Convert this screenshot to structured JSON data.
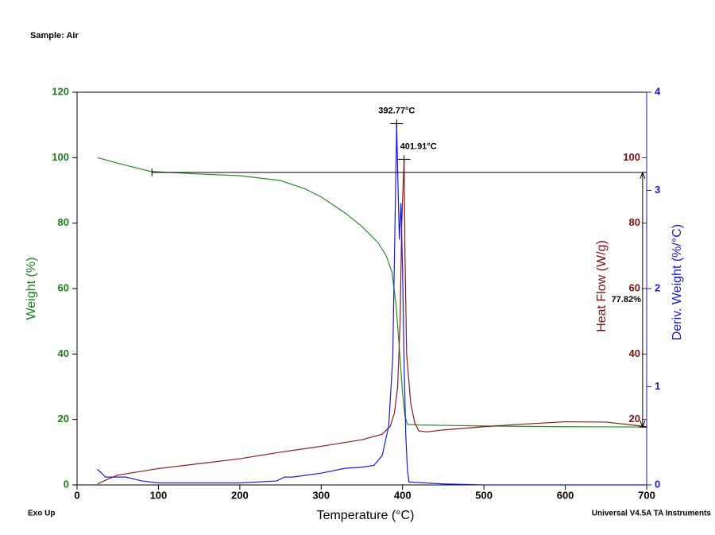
{
  "chart_data": {
    "type": "line",
    "title": "Sample: Air",
    "footer_left": "Exo Up",
    "footer_right": "Universal V4.5A TA Instruments",
    "x_label": "Temperature (°C)",
    "y_label": "Weight (%)",
    "y2_label": "Deriv. Weight (%/°C)",
    "y3_label": "Heat Flow (W/g)",
    "xlim": [
      0,
      700
    ],
    "xticks": [
      0,
      100,
      200,
      300,
      400,
      500,
      600,
      700
    ],
    "ylim": [
      0,
      120
    ],
    "yticks": [
      0,
      20,
      40,
      60,
      80,
      100,
      120
    ],
    "y2lim": [
      0,
      4
    ],
    "y2ticks": [
      0,
      1,
      2,
      3,
      4
    ],
    "y3lim": [
      0,
      120
    ],
    "y3ticks": [
      20,
      40,
      60,
      80,
      100
    ],
    "y_color": "#1e7d1e",
    "y2_color": "#1a1ad0",
    "y3_color": "#7a1010",
    "series": [
      {
        "name": "Weight (%)",
        "axis": "y",
        "color": "#2a8a2a",
        "x": [
          25,
          50,
          90,
          150,
          200,
          250,
          280,
          300,
          330,
          350,
          370,
          380,
          387,
          392,
          396,
          400,
          403,
          406,
          420,
          450,
          500,
          600,
          700
        ],
        "values": [
          100,
          98.3,
          95.8,
          95,
          94.5,
          93,
          90.5,
          88,
          83,
          79,
          74,
          70,
          65,
          55,
          42,
          28,
          21,
          18.5,
          18.3,
          18.2,
          18,
          17.8,
          17.7
        ]
      },
      {
        "name": "Heat Flow (W/g)",
        "axis": "y3",
        "color": "#8b1a1a",
        "x": [
          25,
          40,
          50,
          100,
          150,
          200,
          250,
          300,
          350,
          375,
          385,
          390,
          394,
          397,
          399,
          401.91,
          403,
          405,
          410,
          415,
          420,
          430,
          450,
          500,
          550,
          600,
          650,
          700
        ],
        "values": [
          0.3,
          2,
          3,
          5,
          6.5,
          8,
          10,
          11.8,
          13.8,
          15.5,
          18,
          22,
          30,
          50,
          80,
          99.5,
          70,
          40,
          25,
          19,
          16.5,
          16.2,
          16.8,
          17.8,
          18.6,
          19.3,
          19.2,
          17.8
        ]
      },
      {
        "name": "Deriv. Weight (%/°C)",
        "axis": "y2",
        "color": "#1a1ad8",
        "x": [
          25,
          35,
          45,
          60,
          80,
          100,
          150,
          200,
          245,
          255,
          265,
          300,
          330,
          350,
          365,
          375,
          383,
          388,
          391,
          392.77,
          394,
          396,
          398,
          400,
          402,
          404,
          406,
          408,
          450,
          500,
          600,
          700
        ],
        "values": [
          0.16,
          0.08,
          0.08,
          0.08,
          0.04,
          0.02,
          0.02,
          0.02,
          0.04,
          0.08,
          0.08,
          0.12,
          0.17,
          0.18,
          0.2,
          0.3,
          0.6,
          1.3,
          2.8,
          3.68,
          3.2,
          2.5,
          2.87,
          2.2,
          1.2,
          0.5,
          0.15,
          0.03,
          0.01,
          0,
          0,
          0
        ]
      }
    ],
    "annotations": [
      {
        "text": "392.77°C",
        "x": 392.77,
        "y": 3.68,
        "axis": "y2"
      },
      {
        "text": "401.91°C",
        "x": 401.91,
        "y": 99.5,
        "axis": "y3"
      }
    ],
    "step_change": {
      "label": "77.82%",
      "x_start": 92,
      "x": 695,
      "y_top": 95.5,
      "y_bottom": 17.68
    }
  }
}
